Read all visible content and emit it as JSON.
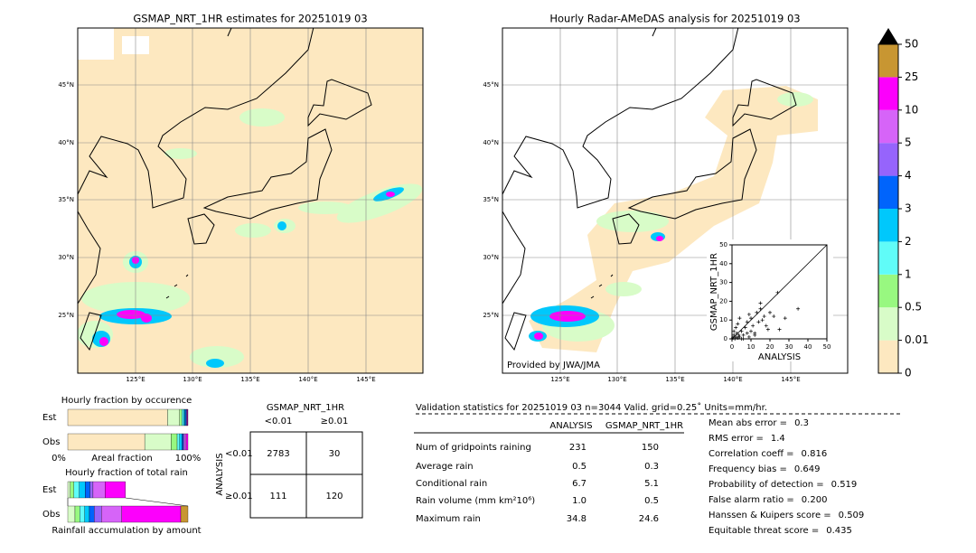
{
  "maps": [
    {
      "title": "GSMAP_NRT_1HR estimates for 20251019 03",
      "lat_labels": [
        "45°N",
        "40°N",
        "35°N",
        "30°N",
        "25°N"
      ],
      "lon_labels": [
        "125°E",
        "130°E",
        "135°E",
        "140°E",
        "145°E"
      ]
    },
    {
      "title": "Hourly Radar-AMeDAS analysis for 20251019 03",
      "lat_labels": [
        "45°N",
        "40°N",
        "35°N",
        "30°N",
        "25°N"
      ],
      "lon_labels": [
        "125°E",
        "130°E",
        "135°E",
        "140°E",
        "145°E"
      ],
      "credit": "Provided by JWA/JMA"
    }
  ],
  "chart_data": [
    {
      "type": "colorbar",
      "bounds": [
        0,
        0.01,
        0.5,
        1,
        2,
        3,
        4,
        5,
        10,
        25,
        50
      ],
      "colors": [
        "#fde8c0",
        "#d8fcc8",
        "#98f880",
        "#60fcf8",
        "#00c8fc",
        "#0064fc",
        "#9664fc",
        "#d664f8",
        "#fc00fc",
        "#c89632"
      ]
    },
    {
      "type": "scatter",
      "xlabel": "ANALYSIS",
      "ylabel": "GSMAP_NRT_1HR",
      "xlim": [
        0,
        50
      ],
      "ylim": [
        0,
        50
      ],
      "xticks": [
        0,
        10,
        20,
        30,
        40,
        50
      ],
      "yticks": [
        0,
        10,
        20,
        30,
        40,
        50
      ],
      "x": [
        0.5,
        1,
        1.5,
        2,
        2.5,
        3,
        3.5,
        4,
        5,
        5,
        6,
        7,
        8,
        8,
        9,
        10,
        10,
        11,
        12,
        13,
        14,
        15,
        15,
        16,
        17,
        18,
        19,
        20,
        22,
        25,
        28,
        34.8,
        1,
        2,
        3,
        6,
        4,
        12,
        9,
        24
      ],
      "y": [
        0.5,
        2,
        0,
        1,
        3,
        0.5,
        2,
        1,
        4,
        0,
        2,
        6,
        3,
        9,
        1,
        4,
        11,
        7,
        2,
        14,
        9,
        16,
        19,
        10,
        12,
        7,
        5,
        14,
        12,
        5,
        11,
        16,
        4,
        6,
        8,
        0,
        11,
        3,
        13,
        24.6
      ]
    },
    {
      "type": "stacked-bar",
      "title": "Hourly fraction by occurence",
      "categories": [
        "Est",
        "Obs"
      ],
      "xlabel": "Areal fraction",
      "xlim": [
        0,
        100
      ],
      "xticks": [
        {
          "value": 0,
          "label": "0%"
        },
        {
          "value": 100,
          "label": "100%"
        }
      ],
      "series": [
        {
          "color": "#fde8c0",
          "values": [
            83,
            64
          ]
        },
        {
          "color": "#d8fcc8",
          "values": [
            10,
            22
          ]
        },
        {
          "color": "#98f880",
          "values": [
            2,
            5
          ]
        },
        {
          "color": "#60fcf8",
          "values": [
            1.5,
            2
          ]
        },
        {
          "color": "#00c8fc",
          "values": [
            1,
            2
          ]
        },
        {
          "color": "#0064fc",
          "values": [
            1,
            1
          ]
        },
        {
          "color": "#9664fc",
          "values": [
            0.5,
            1
          ]
        },
        {
          "color": "#d664f8",
          "values": [
            0.5,
            1.5
          ]
        },
        {
          "color": "#fc00fc",
          "values": [
            0.5,
            1.5
          ]
        },
        {
          "color": "#c89632",
          "values": [
            0,
            0
          ]
        }
      ]
    },
    {
      "type": "stacked-bar",
      "title": "Hourly fraction of total rain",
      "categories": [
        "Est",
        "Obs"
      ],
      "xlabel": "Rainfall accumulation by amount",
      "xlim": [
        0,
        100
      ],
      "series": [
        {
          "color": "#fde8c0",
          "values": [
            0,
            0
          ]
        },
        {
          "color": "#d8fcc8",
          "values": [
            2,
            6
          ]
        },
        {
          "color": "#98f880",
          "values": [
            3,
            4
          ]
        },
        {
          "color": "#60fcf8",
          "values": [
            4.5,
            4
          ]
        },
        {
          "color": "#00c8fc",
          "values": [
            5,
            4
          ]
        },
        {
          "color": "#0064fc",
          "values": [
            4,
            4
          ]
        },
        {
          "color": "#9664fc",
          "values": [
            2.5,
            6
          ]
        },
        {
          "color": "#d664f8",
          "values": [
            10,
            17
          ]
        },
        {
          "color": "#fc00fc",
          "values": [
            17,
            49
          ]
        },
        {
          "color": "#c89632",
          "values": [
            0,
            6
          ]
        }
      ]
    }
  ],
  "contingency": {
    "title": "GSMAP_NRT_1HR",
    "col_labels": [
      "<0.01",
      "≥0.01"
    ],
    "row_title": "ANALYSIS",
    "row_labels": [
      "<0.01",
      "≥0.01"
    ],
    "cells": [
      [
        2783,
        30
      ],
      [
        111,
        120
      ]
    ]
  },
  "validation": {
    "header": "Validation statistics for 20251019 03  n=3044 Valid. grid=0.25˚ Units=mm/hr.",
    "columns": [
      "ANALYSIS",
      "GSMAP_NRT_1HR"
    ],
    "rows": [
      [
        "Num of gridpoints raining",
        "231",
        "150"
      ],
      [
        "Average rain",
        "0.5",
        "0.3"
      ],
      [
        "Conditional rain",
        "6.7",
        "5.1"
      ],
      [
        "Rain volume (mm km²10⁶)",
        "1.0",
        "0.5"
      ],
      [
        "Maximum rain",
        "34.8",
        "24.6"
      ]
    ]
  },
  "scores": [
    [
      "Mean abs error =",
      "0.3"
    ],
    [
      "RMS error =",
      "1.4"
    ],
    [
      "Correlation coeff =",
      "0.816"
    ],
    [
      "Frequency bias =",
      "0.649"
    ],
    [
      "Probability of detection =",
      "0.519"
    ],
    [
      "False alarm ratio =",
      "0.200"
    ],
    [
      "Hanssen & Kuipers score =",
      "0.509"
    ],
    [
      "Equitable threat score =",
      "0.435"
    ]
  ]
}
